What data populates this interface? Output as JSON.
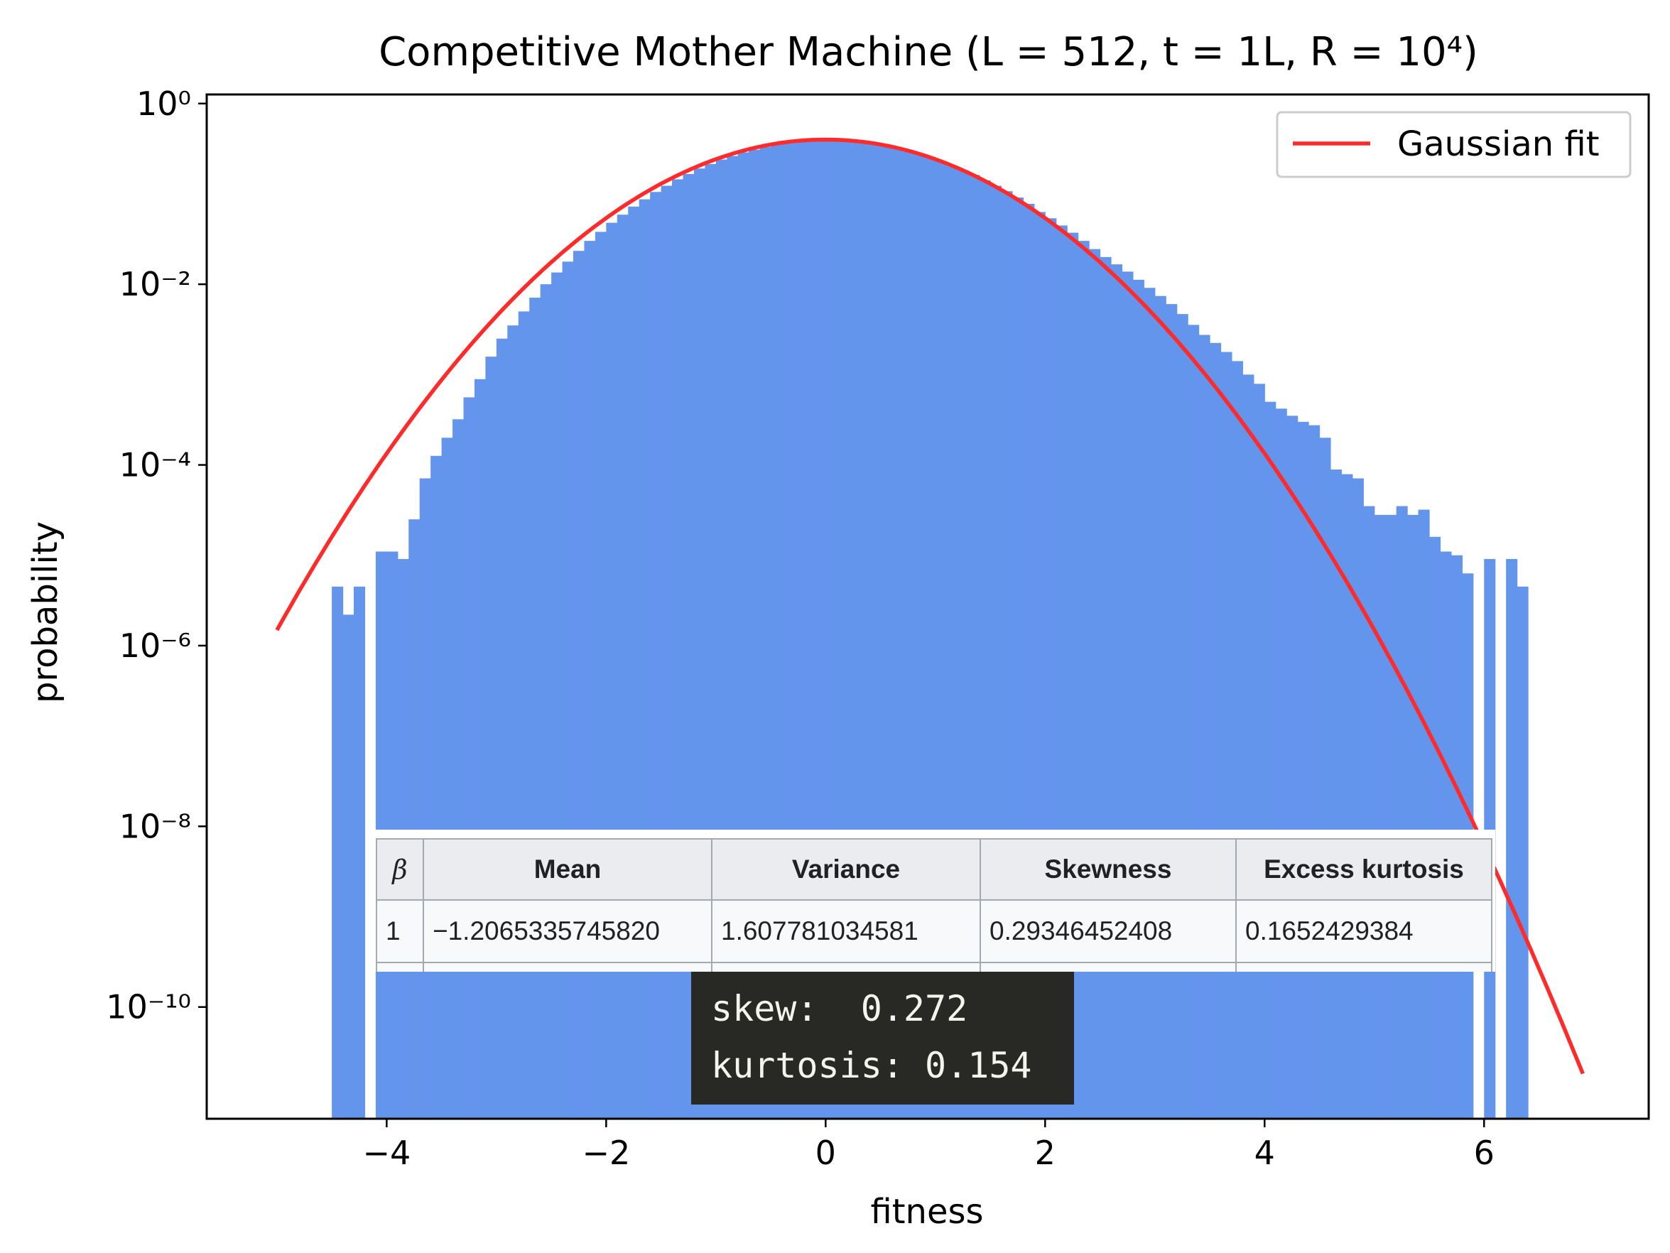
{
  "chart_data": {
    "type": "bar",
    "title": "Competitive Mother Machine (L = 512, t = 1L, R = 10⁴)",
    "xlabel": "fitness",
    "ylabel": "probability",
    "xlim": [
      -5.64,
      7.5
    ],
    "ylim": [
      5.8e-12,
      1.26
    ],
    "yscale": "log",
    "grid": false,
    "legend_position": "top-right",
    "xticks": [
      -4,
      -2,
      0,
      2,
      4,
      6
    ],
    "xtick_labels": [
      "−4",
      "−2",
      "0",
      "2",
      "4",
      "6"
    ],
    "yticks": [
      1,
      0.01,
      0.0001,
      1e-06,
      1e-08,
      1e-10
    ],
    "ytick_labels": [
      "10⁰",
      "10⁻²",
      "10⁻⁴",
      "10⁻⁶",
      "10⁻⁸",
      "10⁻¹⁰"
    ],
    "histogram": {
      "color": "#6495ED",
      "bin_start": -4.5,
      "bin_width": 0.1,
      "values": [
        4.5e-06,
        2.2e-06,
        4.5e-06,
        0,
        1.1e-05,
        1.1e-05,
        9.1e-06,
        2.5e-05,
        7.1e-05,
        0.000126,
        0.0002,
        0.00032,
        0.00056,
        0.00089,
        0.00158,
        0.0025,
        0.0035,
        0.005,
        0.0071,
        0.01,
        0.0135,
        0.0178,
        0.0234,
        0.0302,
        0.038,
        0.0479,
        0.0589,
        0.0724,
        0.0871,
        0.105,
        0.123,
        0.145,
        0.166,
        0.191,
        0.214,
        0.24,
        0.263,
        0.288,
        0.309,
        0.331,
        0.355,
        0.372,
        0.38,
        0.389,
        0.398,
        0.398,
        0.389,
        0.38,
        0.372,
        0.355,
        0.339,
        0.316,
        0.295,
        0.275,
        0.251,
        0.229,
        0.204,
        0.182,
        0.162,
        0.141,
        0.123,
        0.107,
        0.0912,
        0.0776,
        0.0631,
        0.0537,
        0.0447,
        0.0372,
        0.0302,
        0.0245,
        0.02,
        0.0166,
        0.0138,
        0.0112,
        0.00912,
        0.00741,
        0.00603,
        0.00468,
        0.00355,
        0.00275,
        0.00224,
        0.00178,
        0.00141,
        0.001,
        0.00079,
        0.0005,
        0.00042,
        0.00035,
        0.0003,
        0.000275,
        0.0002,
        8.9e-05,
        7.9e-05,
        7.1e-05,
        3.5e-05,
        2.8e-05,
        2.8e-05,
        3.5e-05,
        2.8e-05,
        3.2e-05,
        1.6e-05,
        1.1e-05,
        1e-05,
        6.3e-06,
        0,
        9.1e-06,
        0,
        9.1e-06,
        4.5e-06
      ]
    },
    "fit": {
      "name": "Gaussian fit",
      "color": "#FF2A2A",
      "mean": 0,
      "std": 1,
      "x_range": [
        -5,
        6.9
      ]
    }
  },
  "stats_table": {
    "headers": [
      "β",
      "Mean",
      "Variance",
      "Skewness",
      "Excess kurtosis"
    ],
    "row": [
      "1",
      "−1.2065335745820",
      "1.607781034581",
      "0.29346452408",
      "0.1652429384"
    ]
  },
  "code_output": {
    "line1": "skew:  0.272",
    "line2": "kurtosis: 0.154"
  }
}
